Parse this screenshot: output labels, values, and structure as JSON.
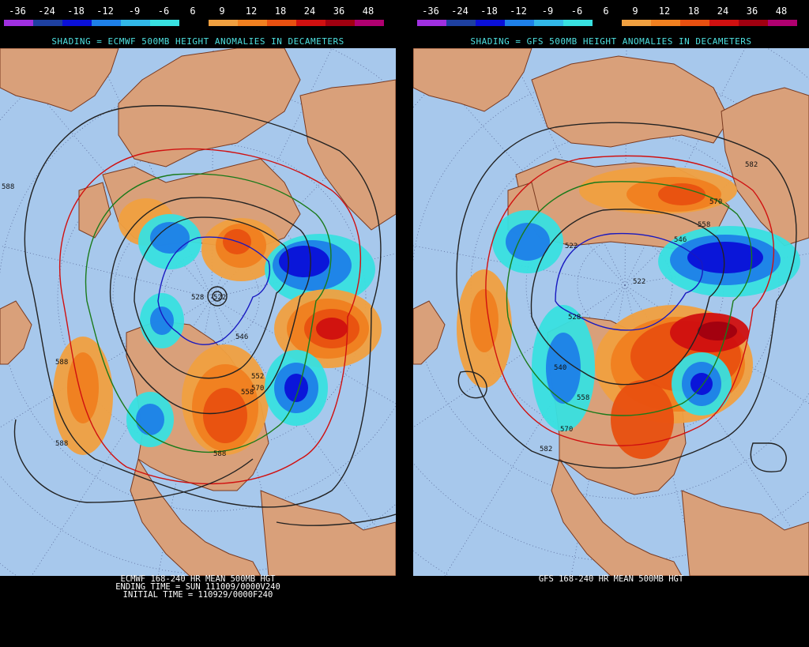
{
  "colorbar": {
    "labels": [
      "-36",
      "-24",
      "-18",
      "-12",
      "-9",
      "-6",
      "6",
      "9",
      "12",
      "18",
      "24",
      "36",
      "48"
    ],
    "colors": [
      "#a030e0",
      "#1e40a0",
      "#0a10d8",
      "#1e80e8",
      "#32b8e8",
      "#38e0e0",
      "#000000",
      "#f0a040",
      "#f08020",
      "#e85010",
      "#d01010",
      "#a00010",
      "#b00070"
    ]
  },
  "left": {
    "subtitle": "SHADING = ECMWF 500MB HEIGHT ANOMALIES IN DECAMETERS",
    "caption": [
      "ECMWF 168-240 HR MEAN 500MB HGT",
      "ENDING TIME = SUN 111009/0000V240",
      "INITIAL TIME = 110929/0000F240"
    ],
    "contour_labels": [
      "588",
      "588",
      "528",
      "522",
      "546",
      "570",
      "552",
      "558",
      "588",
      "588"
    ]
  },
  "right": {
    "subtitle": "SHADING = GFS 500MB HEIGHT ANOMALIES IN DECAMETERS",
    "caption": [
      "GFS 168-240 HR MEAN 500MB HGT"
    ],
    "contour_labels": [
      "582",
      "570",
      "558",
      "546",
      "522",
      "522",
      "528",
      "540",
      "558",
      "570",
      "582"
    ]
  },
  "colors": {
    "ocean": "#a7c8ec",
    "land": "#d9a07a",
    "coast": "#7a3a20",
    "contour": "#222222",
    "contour_552": "#1a7a1a",
    "contour_528": "#1818c0",
    "contour_582": "#d01010"
  }
}
